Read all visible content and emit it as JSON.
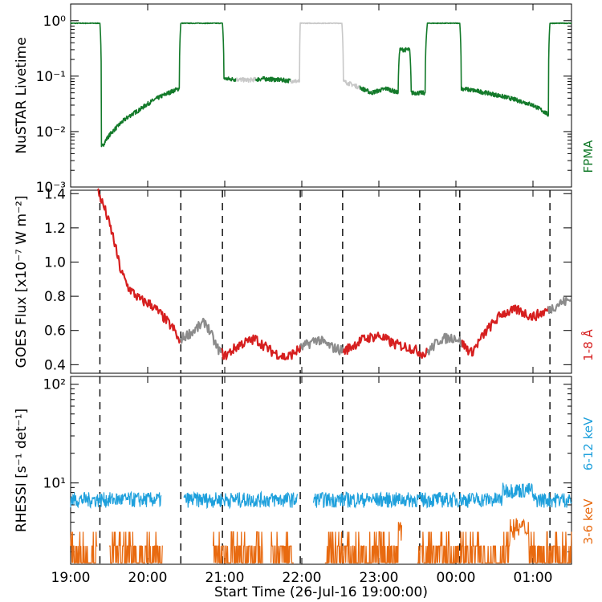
{
  "colors": {
    "fpma_green": "#137a2a",
    "goes_red": "#d61f1f",
    "goes_gray_dark": "#8c8c8c",
    "goes_gray_light": "#c8c8c8",
    "rhessi_blue": "#1ea0dc",
    "rhessi_orange": "#e86a10"
  },
  "xlabel": "Start Time (26-Jul-16 19:00:00)",
  "chart_data": [
    {
      "type": "line",
      "yscale": "log",
      "ylabel": "NuSTAR Livetime",
      "ylim": [
        0.001,
        2.0
      ],
      "xlim_hours": [
        19.0,
        25.5
      ],
      "yticks": [
        {
          "value": 1,
          "label": "10⁰"
        },
        {
          "value": 0.1,
          "label": "10⁻¹"
        },
        {
          "value": 0.01,
          "label": "10⁻²"
        },
        {
          "value": 0.001,
          "label": "10⁻³"
        }
      ],
      "series": [
        {
          "name": "FPMA",
          "color": "#137a2a",
          "points": [
            [
              19.0,
              0.9
            ],
            [
              19.38,
              0.9
            ],
            [
              19.4,
              0.005
            ],
            [
              19.6,
              0.012
            ],
            [
              19.9,
              0.025
            ],
            [
              20.2,
              0.045
            ],
            [
              20.41,
              0.06
            ],
            [
              20.43,
              0.9
            ],
            [
              20.97,
              0.9
            ],
            [
              20.99,
              0.09
            ],
            [
              21.3,
              0.085
            ],
            [
              21.5,
              0.09
            ],
            [
              21.75,
              0.085
            ],
            [
              21.97,
              0.08
            ],
            [
              21.98,
              0.9
            ],
            [
              22.52,
              0.9
            ],
            [
              22.54,
              0.08
            ],
            [
              22.9,
              0.05
            ],
            [
              23.1,
              0.06
            ],
            [
              23.25,
              0.05
            ],
            [
              23.27,
              0.3
            ],
            [
              23.4,
              0.3
            ],
            [
              23.42,
              0.05
            ],
            [
              23.6,
              0.05
            ],
            [
              23.63,
              0.9
            ],
            [
              24.05,
              0.9
            ],
            [
              24.07,
              0.06
            ],
            [
              24.4,
              0.05
            ],
            [
              24.7,
              0.04
            ],
            [
              25.0,
              0.03
            ],
            [
              25.2,
              0.02
            ],
            [
              25.22,
              0.9
            ],
            [
              25.5,
              0.9
            ]
          ]
        }
      ],
      "gray_segments_hours": [
        [
          21.15,
          21.4
        ],
        [
          21.85,
          22.0
        ],
        [
          22.0,
          22.53
        ],
        [
          22.53,
          22.75
        ]
      ]
    },
    {
      "type": "line",
      "ylabel": "GOES Flux [x10⁻⁷ W m⁻²]",
      "ylim": [
        0.35,
        1.42
      ],
      "xlim_hours": [
        19.0,
        25.5
      ],
      "yticks": [
        {
          "value": 0.4,
          "label": "0.4"
        },
        {
          "value": 0.6,
          "label": "0.6"
        },
        {
          "value": 0.8,
          "label": "0.8"
        },
        {
          "value": 1.0,
          "label": "1.0"
        },
        {
          "value": 1.2,
          "label": "1.2"
        },
        {
          "value": 1.4,
          "label": "1.4"
        }
      ],
      "series": [
        {
          "name": "1-8 Å",
          "color": "#d61f1f",
          "points": [
            [
              19.35,
              1.42
            ],
            [
              19.45,
              1.3
            ],
            [
              19.55,
              1.15
            ],
            [
              19.65,
              0.95
            ],
            [
              19.75,
              0.85
            ],
            [
              19.9,
              0.78
            ],
            [
              20.05,
              0.75
            ],
            [
              20.2,
              0.68
            ],
            [
              20.35,
              0.6
            ],
            [
              20.42,
              0.52
            ],
            [
              20.43,
              0.55
            ],
            [
              20.6,
              0.6
            ],
            [
              20.75,
              0.65
            ],
            [
              20.9,
              0.5
            ],
            [
              21.0,
              0.45
            ],
            [
              21.2,
              0.52
            ],
            [
              21.4,
              0.55
            ],
            [
              21.6,
              0.48
            ],
            [
              21.8,
              0.44
            ],
            [
              22.0,
              0.5
            ],
            [
              22.2,
              0.55
            ],
            [
              22.4,
              0.5
            ],
            [
              22.55,
              0.48
            ],
            [
              22.8,
              0.55
            ],
            [
              23.0,
              0.57
            ],
            [
              23.2,
              0.52
            ],
            [
              23.4,
              0.5
            ],
            [
              23.6,
              0.46
            ],
            [
              23.8,
              0.55
            ],
            [
              24.0,
              0.56
            ],
            [
              24.2,
              0.47
            ],
            [
              24.4,
              0.6
            ],
            [
              24.6,
              0.7
            ],
            [
              24.8,
              0.72
            ],
            [
              25.0,
              0.68
            ],
            [
              25.2,
              0.72
            ],
            [
              25.35,
              0.76
            ],
            [
              25.5,
              0.78
            ]
          ]
        }
      ],
      "gray_segments_hours": [
        [
          20.42,
          20.95
        ],
        [
          21.98,
          22.53
        ],
        [
          23.63,
          24.07
        ],
        [
          25.2,
          25.5
        ]
      ]
    },
    {
      "type": "line",
      "yscale": "log",
      "ylabel": "RHESSI [s⁻¹ det⁻¹]",
      "ylim": [
        1.5,
        120
      ],
      "xlim_hours": [
        19.0,
        25.5
      ],
      "yticks": [
        {
          "value": 100,
          "label": "10²"
        },
        {
          "value": 10,
          "label": "10¹"
        }
      ],
      "series": [
        {
          "name": "6-12 keV",
          "color": "#1ea0dc",
          "base": 7.0,
          "segments_hours": [
            [
              19.0,
              20.18
            ],
            [
              20.47,
              21.95
            ],
            [
              22.15,
              25.5
            ]
          ]
        },
        {
          "name": "3-6 keV",
          "color": "#e86a10",
          "base": 2.0,
          "segments_hours": [
            [
              19.0,
              19.35
            ],
            [
              19.5,
              20.2
            ],
            [
              20.85,
              21.5
            ],
            [
              21.6,
              21.9
            ],
            [
              22.3,
              23.3
            ],
            [
              23.5,
              25.5
            ]
          ]
        }
      ]
    }
  ],
  "xticks": [
    {
      "hour": 19.0,
      "label": "19:00"
    },
    {
      "hour": 20.0,
      "label": "20:00"
    },
    {
      "hour": 21.0,
      "label": "21:00"
    },
    {
      "hour": 22.0,
      "label": "22:00"
    },
    {
      "hour": 23.0,
      "label": "23:00"
    },
    {
      "hour": 24.0,
      "label": "00:00"
    },
    {
      "hour": 25.0,
      "label": "01:00"
    }
  ],
  "vlines_hours": [
    19.38,
    20.43,
    20.97,
    21.98,
    22.53,
    23.53,
    24.05,
    25.22
  ]
}
